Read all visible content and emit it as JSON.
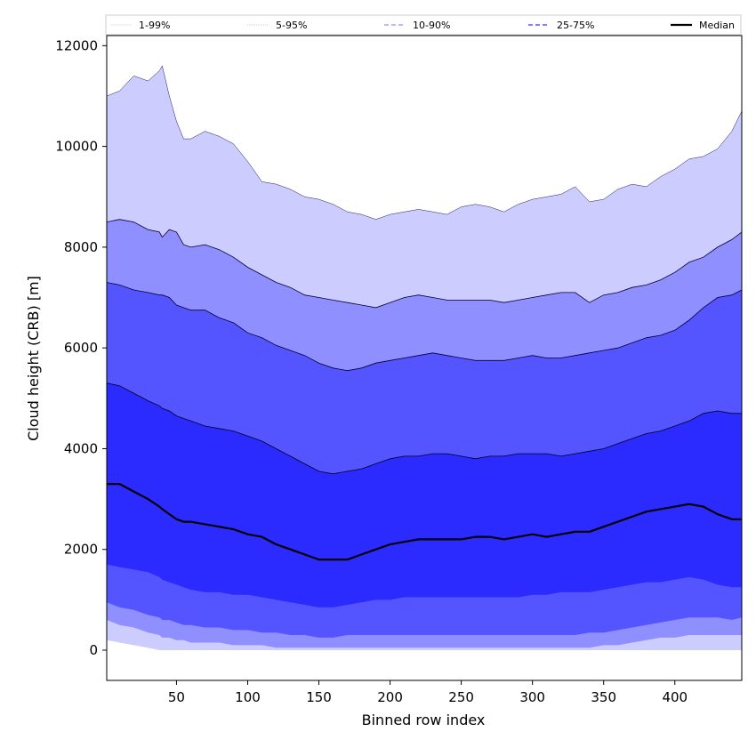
{
  "chart_data": {
    "type": "area",
    "xlabel": "Binned row index",
    "ylabel": "Cloud height (CRB) [m]",
    "xlim": [
      1,
      447
    ],
    "ylim": [
      -600,
      12200
    ],
    "x_ticks": [
      50,
      100,
      150,
      200,
      250,
      300,
      350,
      400
    ],
    "y_ticks": [
      0,
      2000,
      4000,
      6000,
      8000,
      10000,
      12000
    ],
    "legend": {
      "placement": "top, above plot",
      "entries": [
        {
          "label": "1-99%",
          "style": "thin solid",
          "color": "#ccccff"
        },
        {
          "label": "5-95%",
          "style": "thin dotted",
          "color": "#8f8fff"
        },
        {
          "label": "10-90%",
          "style": "dashed",
          "color": "#8f8fff"
        },
        {
          "label": "25-75%",
          "style": "dashed",
          "color": "#5555ff"
        },
        {
          "label": "Median",
          "style": "solid thick",
          "color": "#000000"
        }
      ]
    },
    "colors": {
      "band_1_99": "#ccccff",
      "band_5_95": "#8f8fff",
      "band_10_90": "#5555ff",
      "band_25_75": "#2b2bff",
      "median": "#000000"
    },
    "x": [
      1,
      10,
      20,
      30,
      38,
      40,
      45,
      50,
      55,
      60,
      70,
      80,
      90,
      100,
      110,
      120,
      130,
      140,
      150,
      160,
      170,
      180,
      190,
      200,
      210,
      220,
      230,
      240,
      250,
      260,
      270,
      280,
      290,
      300,
      310,
      320,
      330,
      340,
      350,
      360,
      370,
      380,
      390,
      400,
      410,
      420,
      430,
      440,
      447
    ],
    "series": [
      {
        "name": "p99",
        "values": [
          11000,
          11100,
          11400,
          11300,
          11500,
          11600,
          11000,
          10500,
          10150,
          10150,
          10300,
          10200,
          10050,
          9700,
          9300,
          9250,
          9150,
          9000,
          8950,
          8850,
          8700,
          8650,
          8550,
          8650,
          8700,
          8750,
          8700,
          8650,
          8800,
          8850,
          8800,
          8700,
          8850,
          8950,
          9000,
          9050,
          9200,
          8900,
          8950,
          9150,
          9250,
          9200,
          9400,
          9550,
          9750,
          9800,
          9950,
          10300,
          10700
        ]
      },
      {
        "name": "p95",
        "values": [
          8500,
          8550,
          8500,
          8350,
          8300,
          8200,
          8350,
          8300,
          8050,
          8000,
          8050,
          7950,
          7800,
          7600,
          7450,
          7300,
          7200,
          7050,
          7000,
          6950,
          6900,
          6850,
          6800,
          6900,
          7000,
          7050,
          7000,
          6950,
          6950,
          6950,
          6950,
          6900,
          6950,
          7000,
          7050,
          7100,
          7100,
          6900,
          7050,
          7100,
          7200,
          7250,
          7350,
          7500,
          7700,
          7800,
          8000,
          8150,
          8300
        ]
      },
      {
        "name": "p90",
        "values": [
          7300,
          7250,
          7150,
          7100,
          7050,
          7050,
          7000,
          6850,
          6800,
          6750,
          6750,
          6600,
          6500,
          6300,
          6200,
          6050,
          5950,
          5850,
          5700,
          5600,
          5550,
          5600,
          5700,
          5750,
          5800,
          5850,
          5900,
          5850,
          5800,
          5750,
          5750,
          5750,
          5800,
          5850,
          5800,
          5800,
          5850,
          5900,
          5950,
          6000,
          6100,
          6200,
          6250,
          6350,
          6550,
          6800,
          7000,
          7050,
          7150
        ]
      },
      {
        "name": "p75",
        "values": [
          5300,
          5250,
          5100,
          4950,
          4850,
          4800,
          4750,
          4650,
          4600,
          4550,
          4450,
          4400,
          4350,
          4250,
          4150,
          4000,
          3850,
          3700,
          3550,
          3500,
          3550,
          3600,
          3700,
          3800,
          3850,
          3850,
          3900,
          3900,
          3850,
          3800,
          3850,
          3850,
          3900,
          3900,
          3900,
          3850,
          3900,
          3950,
          4000,
          4100,
          4200,
          4300,
          4350,
          4450,
          4550,
          4700,
          4750,
          4700,
          4700
        ]
      },
      {
        "name": "Median",
        "values": [
          3300,
          3300,
          3150,
          3000,
          2850,
          2800,
          2700,
          2600,
          2550,
          2550,
          2500,
          2450,
          2400,
          2300,
          2250,
          2100,
          2000,
          1900,
          1800,
          1800,
          1800,
          1900,
          2000,
          2100,
          2150,
          2200,
          2200,
          2200,
          2200,
          2250,
          2250,
          2200,
          2250,
          2300,
          2250,
          2300,
          2350,
          2350,
          2450,
          2550,
          2650,
          2750,
          2800,
          2850,
          2900,
          2850,
          2700,
          2600,
          2600
        ]
      },
      {
        "name": "p25",
        "values": [
          1700,
          1650,
          1600,
          1550,
          1450,
          1400,
          1350,
          1300,
          1250,
          1200,
          1150,
          1150,
          1100,
          1100,
          1050,
          1000,
          950,
          900,
          850,
          850,
          900,
          950,
          1000,
          1000,
          1050,
          1050,
          1050,
          1050,
          1050,
          1050,
          1050,
          1050,
          1050,
          1100,
          1100,
          1150,
          1150,
          1150,
          1200,
          1250,
          1300,
          1350,
          1350,
          1400,
          1450,
          1400,
          1300,
          1250,
          1250
        ]
      },
      {
        "name": "p10",
        "values": [
          950,
          850,
          800,
          700,
          650,
          600,
          600,
          550,
          500,
          500,
          450,
          450,
          400,
          400,
          350,
          350,
          300,
          300,
          250,
          250,
          300,
          300,
          300,
          300,
          300,
          300,
          300,
          300,
          300,
          300,
          300,
          300,
          300,
          300,
          300,
          300,
          300,
          350,
          350,
          400,
          450,
          500,
          550,
          600,
          650,
          650,
          650,
          600,
          650
        ]
      },
      {
        "name": "p5",
        "values": [
          600,
          500,
          450,
          350,
          300,
          250,
          250,
          200,
          200,
          150,
          150,
          150,
          100,
          100,
          100,
          50,
          50,
          50,
          50,
          50,
          50,
          50,
          50,
          50,
          50,
          50,
          50,
          50,
          50,
          50,
          50,
          50,
          50,
          50,
          50,
          50,
          50,
          50,
          100,
          100,
          150,
          200,
          250,
          250,
          300,
          300,
          300,
          300,
          300
        ]
      },
      {
        "name": "p1",
        "values": [
          200,
          150,
          100,
          50,
          0,
          0,
          0,
          0,
          0,
          0,
          0,
          0,
          0,
          0,
          0,
          0,
          0,
          0,
          0,
          0,
          0,
          0,
          0,
          0,
          0,
          0,
          0,
          0,
          0,
          0,
          0,
          0,
          0,
          0,
          0,
          0,
          0,
          0,
          0,
          0,
          0,
          0,
          0,
          0,
          0,
          0,
          0,
          0,
          0
        ]
      }
    ]
  }
}
